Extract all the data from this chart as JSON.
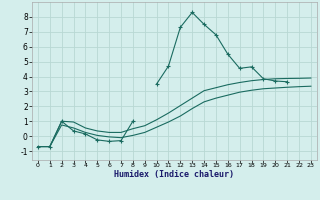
{
  "xlabel": "Humidex (Indice chaleur)",
  "background_color": "#d4eeec",
  "grid_color": "#b8d8d4",
  "line_color": "#1a6b60",
  "xlim": [
    -0.5,
    23.5
  ],
  "ylim": [
    -1.6,
    9.0
  ],
  "yticks": [
    -1,
    0,
    1,
    2,
    3,
    4,
    5,
    6,
    7,
    8
  ],
  "xticks": [
    0,
    1,
    2,
    3,
    4,
    5,
    6,
    7,
    8,
    9,
    10,
    11,
    12,
    13,
    14,
    15,
    16,
    17,
    18,
    19,
    20,
    21,
    22,
    23
  ],
  "line1_x": [
    0,
    1,
    2,
    3,
    4,
    5,
    6,
    7,
    8,
    9,
    10,
    11,
    12,
    13,
    14,
    15,
    16,
    17,
    18,
    19,
    20,
    21,
    22,
    23
  ],
  "line1_y": [
    -0.7,
    -0.7,
    1.0,
    0.35,
    0.15,
    -0.25,
    -0.35,
    -0.3,
    1.0,
    null,
    3.5,
    4.7,
    7.3,
    8.3,
    7.5,
    6.8,
    5.5,
    4.55,
    4.65,
    3.85,
    3.7,
    3.65,
    null,
    null
  ],
  "line2_x": [
    0,
    1,
    2,
    3,
    4,
    5,
    6,
    7,
    8,
    9,
    10,
    11,
    12,
    13,
    14,
    15,
    16,
    17,
    18,
    19,
    20,
    21,
    22,
    23
  ],
  "line2_y": [
    -0.7,
    -0.7,
    1.0,
    0.95,
    0.55,
    0.35,
    0.25,
    0.25,
    0.5,
    0.7,
    1.1,
    1.55,
    2.05,
    2.55,
    3.05,
    3.25,
    3.45,
    3.6,
    3.72,
    3.8,
    3.85,
    3.87,
    3.88,
    3.9
  ],
  "line3_x": [
    0,
    1,
    2,
    3,
    4,
    5,
    6,
    7,
    8,
    9,
    10,
    11,
    12,
    13,
    14,
    15,
    16,
    17,
    18,
    19,
    20,
    21,
    22,
    23
  ],
  "line3_y": [
    -0.7,
    -0.7,
    0.75,
    0.55,
    0.25,
    0.05,
    -0.05,
    -0.1,
    0.05,
    0.25,
    0.6,
    0.95,
    1.35,
    1.85,
    2.3,
    2.55,
    2.75,
    2.95,
    3.08,
    3.18,
    3.23,
    3.28,
    3.32,
    3.35
  ]
}
